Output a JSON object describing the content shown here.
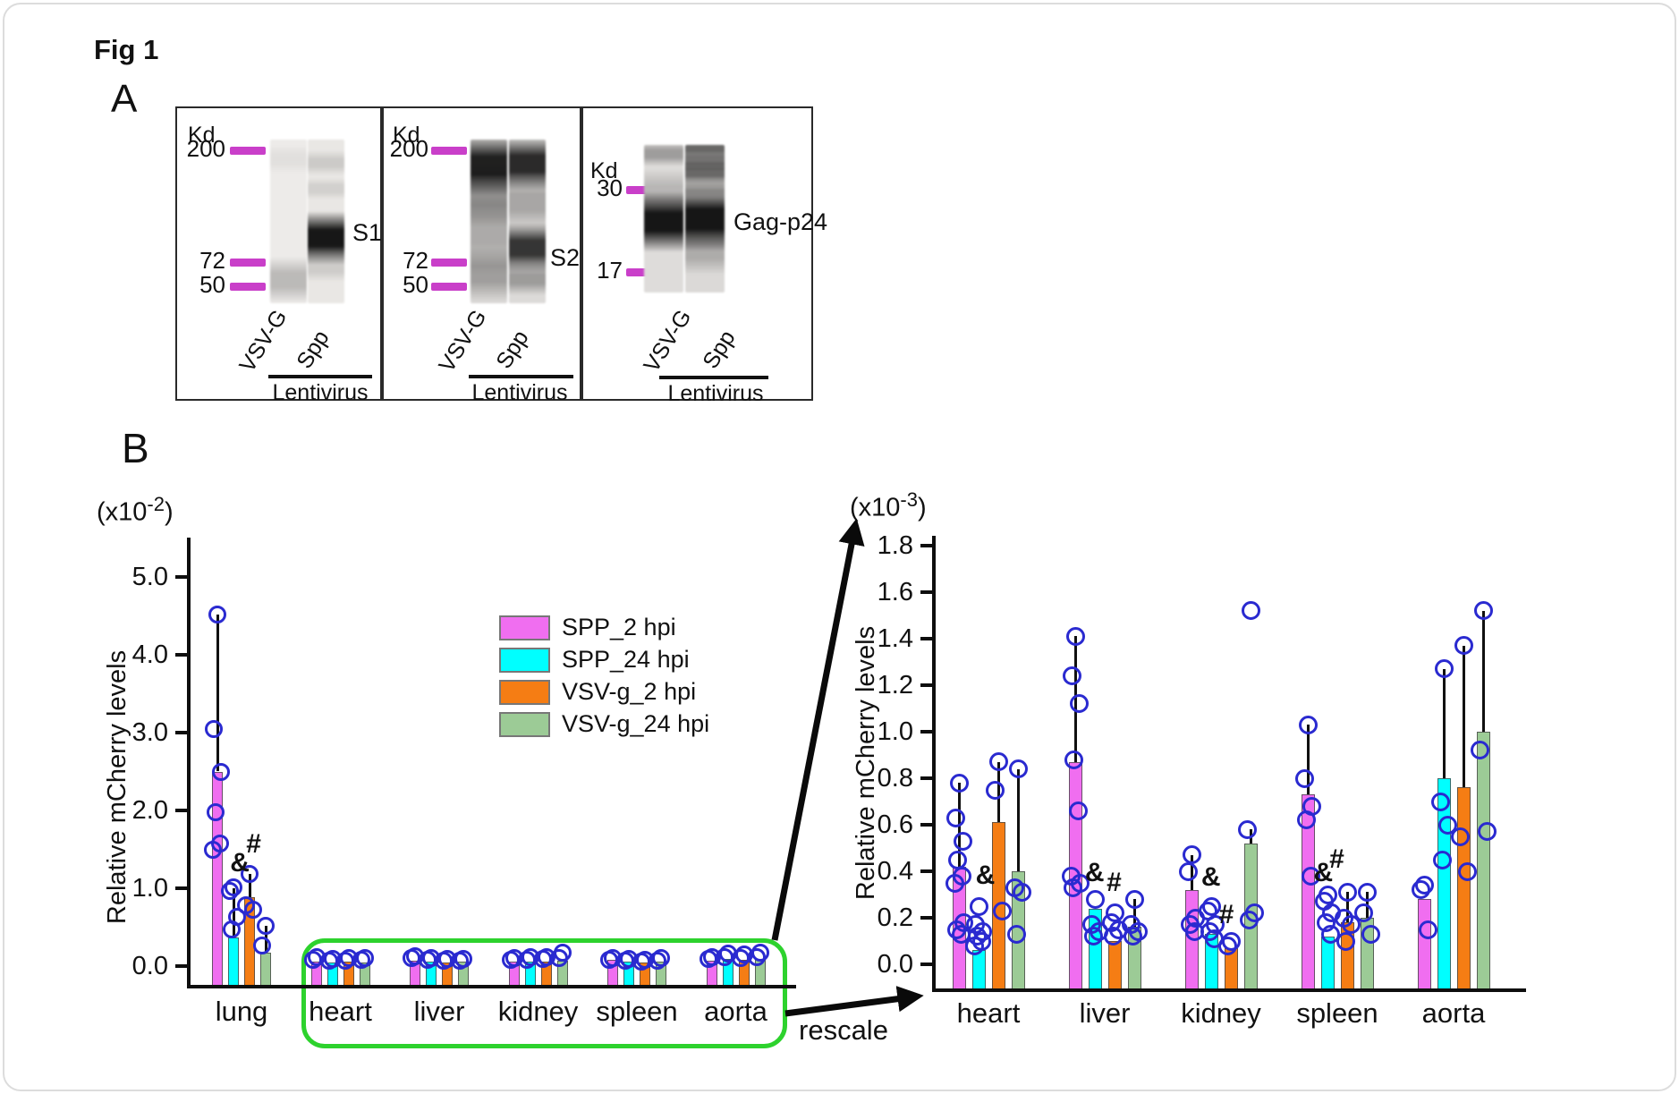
{
  "figure": {
    "title": "Fig 1",
    "panel_a_label": "A",
    "panel_b_label": "B",
    "rescale_label": "rescale"
  },
  "colors": {
    "series": [
      "#f06ef0",
      "#00ffff",
      "#f57d14",
      "#9ccb96"
    ],
    "point_outline": "#2a2ad0",
    "marker_dash": "#c93fc9",
    "highlight_box": "#2dd22d",
    "axis": "#0e0e0e"
  },
  "panel_a": {
    "blots": [
      {
        "kd_label": "Kd",
        "markers": [
          {
            "label": "200"
          },
          {
            "label": "72"
          },
          {
            "label": "50"
          }
        ],
        "band_label": "S1",
        "lanes": [
          "VSV-G",
          "Spp"
        ],
        "group_label": "Lentivirus"
      },
      {
        "kd_label": "Kd",
        "markers": [
          {
            "label": "200"
          },
          {
            "label": "72"
          },
          {
            "label": "50"
          }
        ],
        "band_label": "S2",
        "lanes": [
          "VSV-G",
          "Spp"
        ],
        "group_label": "Lentivirus"
      },
      {
        "kd_label": "Kd",
        "markers": [
          {
            "label": "30"
          },
          {
            "label": "17"
          }
        ],
        "band_label": "Gag-p24",
        "lanes": [
          "VSV-G",
          "Spp"
        ],
        "group_label": "Lentivirus"
      }
    ]
  },
  "chart_data": [
    {
      "type": "bar",
      "id": "overview",
      "scale_label": {
        "base": "(x10",
        "exponent": "-2",
        "close": ")"
      },
      "ylabel": "Relative mCherry levels",
      "ylim": [
        0,
        5.8
      ],
      "grid": false,
      "legend_position": "upper-middle",
      "yticks": {
        "values": [
          0,
          1,
          2,
          3,
          4,
          5
        ],
        "labels": [
          "0.0",
          "1.0",
          "2.0",
          "3.0",
          "4.0",
          "5.0"
        ]
      },
      "categories": [
        "lung",
        "heart",
        "liver",
        "kidney",
        "spleen",
        "aorta"
      ],
      "series": [
        {
          "name": "SPP_2 hpi",
          "color": "#f06ef0",
          "bars": [
            2.5,
            0.06,
            0.07,
            0.06,
            0.08,
            0.07
          ],
          "errors": [
            4.52,
            null,
            null,
            null,
            null,
            null
          ],
          "points": [
            [
              4.52,
              3.05,
              2.5,
              1.98,
              1.57,
              1.49
            ],
            [
              0.11,
              0.08
            ],
            [
              0.13,
              0.1
            ],
            [
              0.1,
              0.08
            ],
            [
              0.1,
              0.08
            ],
            [
              0.12,
              0.09
            ]
          ]
        },
        {
          "name": "SPP_24 hpi",
          "color": "#00ffff",
          "bars": [
            0.37,
            0.05,
            0.06,
            0.06,
            0.06,
            0.09
          ],
          "errors": [
            1.0,
            null,
            null,
            null,
            null,
            null
          ],
          "points": [
            [
              1.01,
              0.97,
              0.63,
              0.47
            ],
            [
              0.09,
              0.07
            ],
            [
              0.1,
              0.08
            ],
            [
              0.11,
              0.08
            ],
            [
              0.09,
              0.07
            ],
            [
              0.16,
              0.11
            ]
          ]
        },
        {
          "name": "VSV-g_2 hpi",
          "color": "#f57d14",
          "bars": [
            0.88,
            0.06,
            0.05,
            0.06,
            0.05,
            0.08
          ],
          "errors": [
            1.18,
            null,
            null,
            null,
            null,
            null
          ],
          "points": [
            [
              1.18,
              0.78,
              0.72
            ],
            [
              0.1,
              0.07
            ],
            [
              0.09,
              0.07
            ],
            [
              0.12,
              0.09
            ],
            [
              0.08,
              0.06
            ],
            [
              0.15,
              0.1
            ]
          ]
        },
        {
          "name": "VSV-g_24 hpi",
          "color": "#9ccb96",
          "bars": [
            0.17,
            0.05,
            0.06,
            0.07,
            0.06,
            0.09
          ],
          "errors": [
            0.52,
            null,
            null,
            null,
            null,
            null
          ],
          "points": [
            [
              0.52,
              0.27
            ],
            [
              0.1,
              0.08
            ],
            [
              0.09,
              0.07
            ],
            [
              0.17,
              0.1
            ],
            [
              0.1,
              0.07
            ],
            [
              0.17,
              0.12
            ]
          ]
        }
      ],
      "annotations": [
        {
          "text": "&",
          "category_index": 0,
          "slot": 1.35,
          "value": 1.29
        },
        {
          "text": "#",
          "category_index": 0,
          "slot": 2.35,
          "value": 1.53
        }
      ]
    },
    {
      "type": "bar",
      "id": "rescaled",
      "scale_label": {
        "base": "(x10",
        "exponent": "-3",
        "close": ")"
      },
      "ylabel": "Relative mCherry levels",
      "ylim": [
        0,
        1.8
      ],
      "grid": false,
      "legend_position": "none",
      "yticks": {
        "values": [
          0,
          0.2,
          0.4,
          0.6,
          0.8,
          1.0,
          1.2,
          1.4,
          1.6,
          1.8
        ],
        "labels": [
          "0.0",
          "0.2",
          "0.4",
          "0.6",
          "0.8",
          "1.0",
          "1.2",
          "1.4",
          "1.6",
          "1.8"
        ]
      },
      "categories": [
        "heart",
        "liver",
        "kidney",
        "spleen",
        "aorta"
      ],
      "series": [
        {
          "name": "SPP_2 hpi",
          "color": "#f06ef0",
          "bars": [
            0.42,
            0.87,
            0.32,
            0.73,
            0.28
          ],
          "errors": [
            0.78,
            1.41,
            0.47,
            1.03,
            null
          ],
          "points": [
            [
              0.78,
              0.63,
              0.53,
              0.45,
              0.38,
              0.35,
              0.18,
              0.15,
              0.13
            ],
            [
              1.41,
              1.24,
              1.12,
              0.88,
              0.66,
              0.38,
              0.35,
              0.33
            ],
            [
              0.47,
              0.4,
              0.2,
              0.17,
              0.14
            ],
            [
              1.03,
              0.8,
              0.68,
              0.62,
              0.38
            ],
            [
              0.34,
              0.32,
              0.15
            ]
          ]
        },
        {
          "name": "SPP_24 hpi",
          "color": "#00ffff",
          "bars": [
            0.06,
            0.24,
            0.13,
            0.12,
            0.8
          ],
          "errors": [
            null,
            null,
            null,
            null,
            1.27
          ],
          "points": [
            [
              0.25,
              0.17,
              0.14,
              0.12,
              0.1,
              0.08
            ],
            [
              0.28,
              0.17,
              0.14,
              0.12
            ],
            [
              0.25,
              0.23,
              0.17,
              0.14,
              0.11
            ],
            [
              0.3,
              0.27,
              0.22,
              0.18,
              0.13
            ],
            [
              1.27,
              0.7,
              0.6,
              0.45
            ]
          ]
        },
        {
          "name": "VSV-g_2 hpi",
          "color": "#f57d14",
          "bars": [
            0.61,
            0.1,
            0.07,
            0.18,
            0.76
          ],
          "errors": [
            0.87,
            null,
            null,
            0.31,
            1.37
          ],
          "points": [
            [
              0.87,
              0.75,
              0.23
            ],
            [
              0.22,
              0.18,
              0.15,
              0.12
            ],
            [
              0.1,
              0.08
            ],
            [
              0.31,
              0.2,
              0.17,
              0.1
            ],
            [
              1.37,
              0.55,
              0.4
            ]
          ]
        },
        {
          "name": "VSV-g_24 hpi",
          "color": "#9ccb96",
          "bars": [
            0.4,
            0.16,
            0.52,
            0.2,
            1.0
          ],
          "errors": [
            0.84,
            0.28,
            0.58,
            0.31,
            1.52
          ],
          "points": [
            [
              0.84,
              0.33,
              0.31,
              0.13
            ],
            [
              0.28,
              0.17,
              0.14,
              0.12
            ],
            [
              1.52,
              0.58,
              0.22,
              0.19
            ],
            [
              0.31,
              0.22,
              0.13
            ],
            [
              1.52,
              0.92,
              0.57
            ]
          ]
        }
      ],
      "annotations": [
        {
          "text": "&",
          "category_index": 0,
          "slot": 1.3,
          "value": 0.37
        },
        {
          "text": "&",
          "category_index": 1,
          "slot": 0.95,
          "value": 0.38
        },
        {
          "text": "#",
          "category_index": 1,
          "slot": 2.05,
          "value": 0.34
        },
        {
          "text": "&",
          "category_index": 2,
          "slot": 0.95,
          "value": 0.36
        },
        {
          "text": "#",
          "category_index": 2,
          "slot": 1.85,
          "value": 0.2
        },
        {
          "text": "&",
          "category_index": 3,
          "slot": 0.75,
          "value": 0.38
        },
        {
          "text": "#",
          "category_index": 3,
          "slot": 1.55,
          "value": 0.44
        }
      ]
    }
  ]
}
